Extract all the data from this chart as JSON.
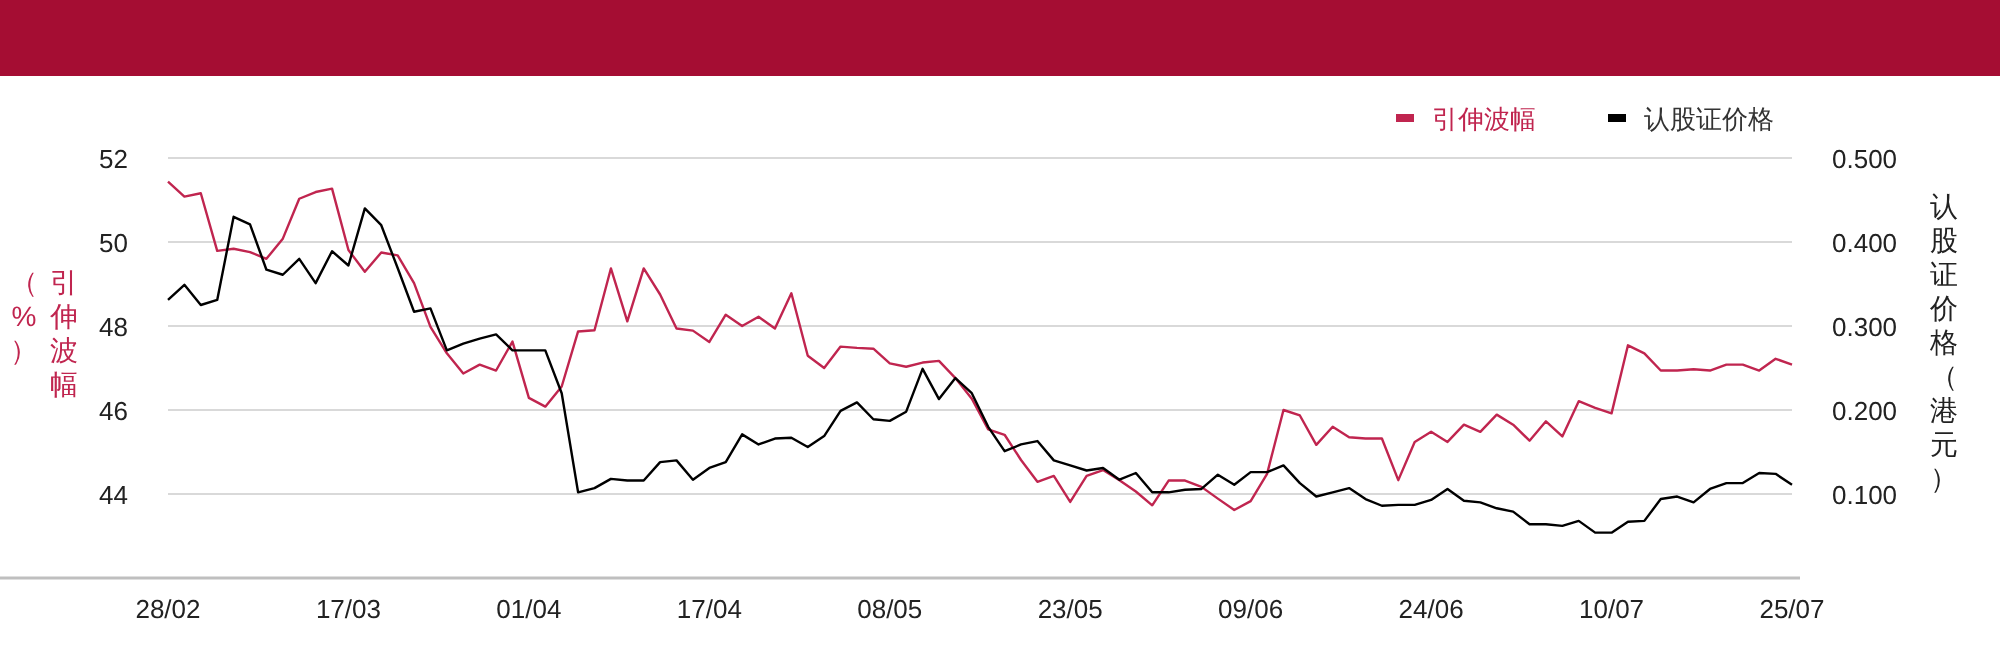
{
  "chart_data": {
    "type": "line",
    "categories": [
      "28/02",
      null,
      null,
      null,
      null,
      null,
      null,
      null,
      null,
      null,
      null,
      "17/03",
      null,
      null,
      null,
      null,
      null,
      null,
      null,
      null,
      null,
      null,
      "01/04",
      null,
      null,
      null,
      null,
      null,
      null,
      null,
      null,
      null,
      null,
      "17/04",
      null,
      null,
      null,
      null,
      null,
      null,
      null,
      null,
      null,
      null,
      "08/05",
      null,
      null,
      null,
      null,
      null,
      null,
      null,
      null,
      null,
      null,
      "23/05",
      null,
      null,
      null,
      null,
      null,
      null,
      null,
      null,
      null,
      null,
      "09/06",
      null,
      null,
      null,
      null,
      null,
      null,
      null,
      null,
      null,
      null,
      "24/06",
      null,
      null,
      null,
      null,
      null,
      null,
      null,
      null,
      null,
      null,
      "10/07",
      null,
      null,
      null,
      null,
      null,
      null,
      null,
      null,
      null,
      null,
      "25/07"
    ],
    "series": [
      {
        "name": "引伸波幅",
        "color": "#c0254f",
        "values": [
          51.44,
          51.08,
          51.16,
          49.79,
          49.84,
          49.76,
          49.6,
          50.08,
          51.03,
          51.19,
          51.27,
          49.81,
          49.29,
          49.75,
          49.68,
          49.02,
          47.98,
          47.35,
          46.87,
          47.08,
          46.94,
          47.63,
          46.29,
          46.08,
          46.56,
          47.87,
          47.9,
          49.37,
          48.11,
          49.37,
          48.75,
          47.94,
          47.89,
          47.62,
          48.27,
          48.0,
          48.22,
          47.94,
          48.78,
          47.29,
          47.0,
          47.51,
          47.48,
          47.46,
          47.11,
          47.03,
          47.13,
          47.17,
          46.76,
          46.27,
          45.54,
          45.41,
          44.81,
          44.29,
          44.43,
          43.81,
          44.43,
          44.57,
          44.33,
          44.06,
          43.73,
          44.32,
          44.32,
          44.17,
          43.89,
          43.62,
          43.83,
          44.48,
          46.0,
          45.87,
          45.17,
          45.6,
          45.35,
          45.32,
          45.32,
          44.33,
          45.24,
          45.48,
          45.24,
          45.65,
          45.48,
          45.89,
          45.65,
          45.27,
          45.73,
          45.37,
          46.21,
          46.05,
          45.92,
          47.54,
          47.35,
          46.94,
          46.94,
          46.97,
          46.94,
          47.08,
          47.08,
          46.94,
          47.22,
          47.08
        ]
      },
      {
        "name": "认股证价格",
        "color": "#000000",
        "axis": "y2",
        "values": [
          0.331,
          0.349,
          0.325,
          0.331,
          0.43,
          0.421,
          0.367,
          0.361,
          0.38,
          0.351,
          0.389,
          0.372,
          0.44,
          0.42,
          0.369,
          0.317,
          0.321,
          0.271,
          0.279,
          0.285,
          0.29,
          0.271,
          0.271,
          0.271,
          0.22,
          0.102,
          0.107,
          0.118,
          0.116,
          0.116,
          0.138,
          0.14,
          0.117,
          0.131,
          0.138,
          0.171,
          0.159,
          0.166,
          0.167,
          0.156,
          0.169,
          0.199,
          0.209,
          0.189,
          0.187,
          0.198,
          0.249,
          0.213,
          0.238,
          0.22,
          0.18,
          0.151,
          0.159,
          0.163,
          0.14,
          0.134,
          0.128,
          0.131,
          0.117,
          0.125,
          0.102,
          0.102,
          0.105,
          0.106,
          0.123,
          0.111,
          0.126,
          0.126,
          0.134,
          0.113,
          0.097,
          0.102,
          0.107,
          0.094,
          0.086,
          0.087,
          0.087,
          0.093,
          0.106,
          0.092,
          0.09,
          0.083,
          0.079,
          0.064,
          0.064,
          0.062,
          0.068,
          0.054,
          0.054,
          0.067,
          0.068,
          0.094,
          0.097,
          0.09,
          0.106,
          0.113,
          0.113,
          0.125,
          0.124,
          0.111
        ]
      }
    ],
    "ylabel": "引伸波幅（%）",
    "y2label": "认股证价格（港元）",
    "ylim": [
      42,
      52
    ],
    "yticks": [
      44,
      46,
      48,
      50,
      52
    ],
    "y2lim": [
      0,
      0.5
    ],
    "y2ticks": [
      {
        "value": 0.1,
        "label": "0.100"
      },
      {
        "value": 0.2,
        "label": "0.200"
      },
      {
        "value": 0.3,
        "label": "0.300"
      },
      {
        "value": 0.4,
        "label": "0.400"
      },
      {
        "value": 0.5,
        "label": "0.500"
      }
    ],
    "grid": "y",
    "legend": "top right"
  }
}
